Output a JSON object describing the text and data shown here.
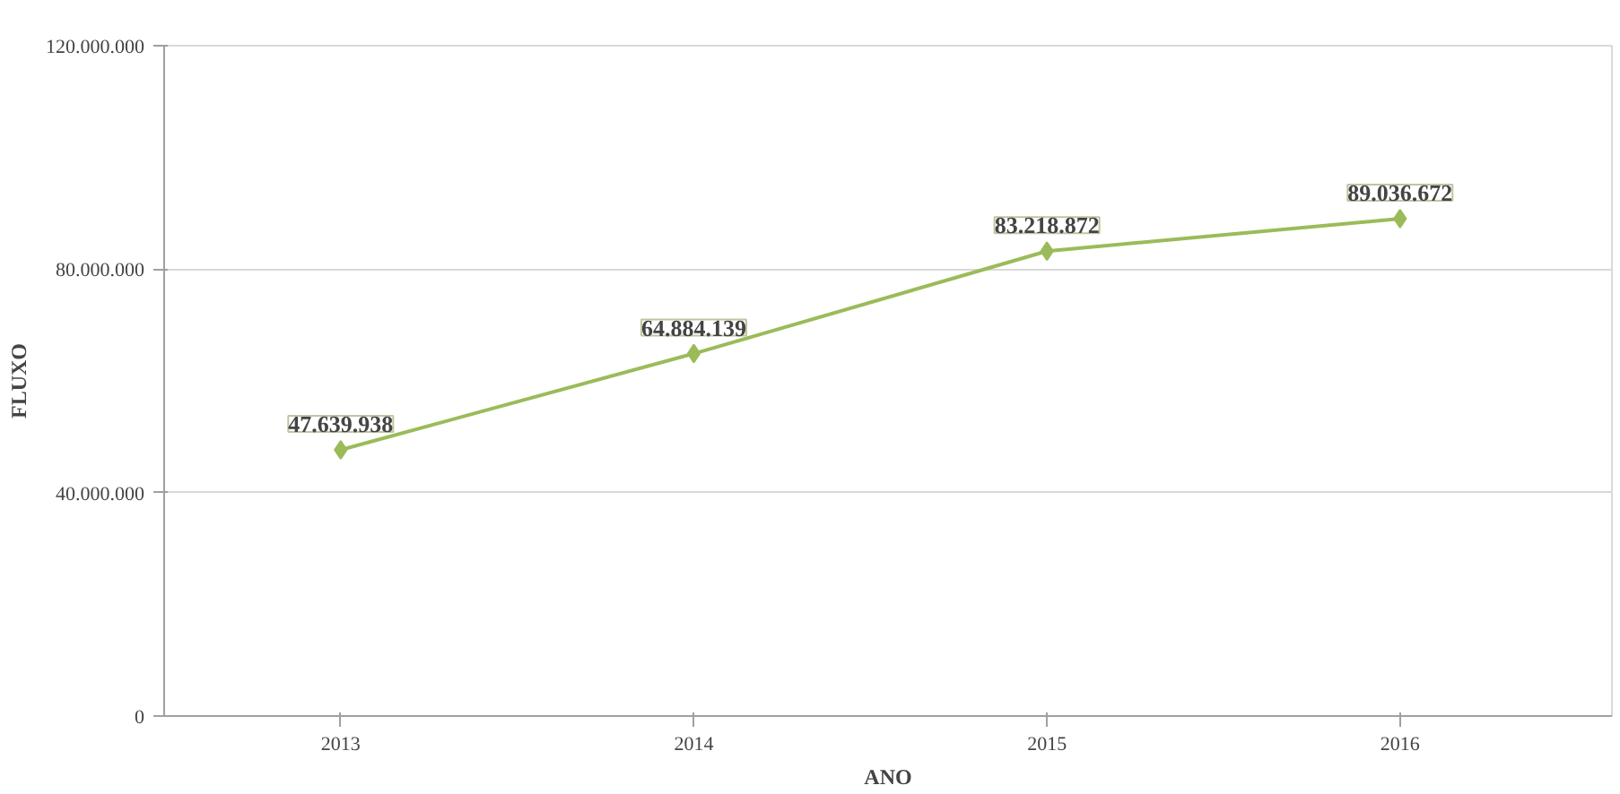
{
  "chart_data": {
    "type": "line",
    "xlabel": "ANO",
    "ylabel": "FLUXO",
    "categories": [
      "2013",
      "2014",
      "2015",
      "2016"
    ],
    "series": [
      {
        "color": "#9bbb59",
        "values": [
          47639938,
          64884139,
          83218872,
          89036672
        ],
        "value_labels": [
          "47.639.938",
          "64.884.139",
          "83.218.872",
          "89.036.672"
        ]
      }
    ],
    "ylim": [
      0,
      120000000
    ],
    "yticks": [
      0,
      {
        "value": 40000000,
        "label": "40.000.000"
      },
      {
        "value": 80000000,
        "label": "80.000.000"
      },
      {
        "value": 120000000,
        "label": "120.000.000"
      }
    ],
    "grid": "y",
    "marker": "diamond",
    "line_style": "solid"
  }
}
